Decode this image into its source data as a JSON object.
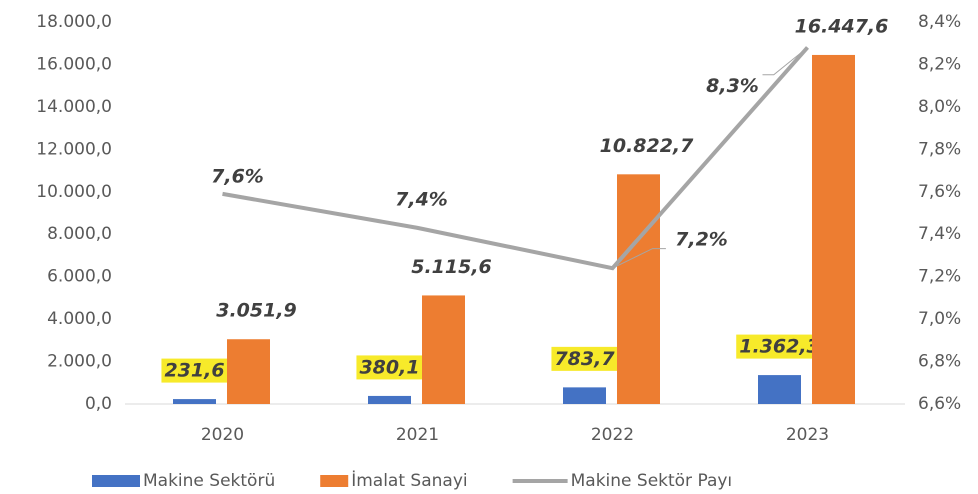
{
  "chart_data": {
    "type": "bar",
    "categories": [
      "2020",
      "2021",
      "2022",
      "2023"
    ],
    "series": [
      {
        "name": "Makine Sektörü",
        "type": "bar",
        "color": "#4472c4",
        "values": [
          231.6,
          380.1,
          783.7,
          1362.3
        ],
        "value_labels": [
          "231,6",
          "380,1",
          "783,7",
          "1.362,3"
        ],
        "label_background": "#f7ea2a"
      },
      {
        "name": "İmalat Sanayi",
        "type": "bar",
        "color": "#ed7d31",
        "values": [
          3051.9,
          5115.6,
          10822.7,
          16447.6
        ],
        "value_labels": [
          "3.051,9",
          "5.115,6",
          "10.822,7",
          "16.447,6"
        ]
      },
      {
        "name": "Makine Sektör Payı",
        "type": "line",
        "axis": "y2",
        "color": "#a5a5a5",
        "values": [
          7.59,
          7.43,
          7.24,
          8.28
        ],
        "value_labels": [
          "7,6%",
          "7,4%",
          "7,2%",
          "8,3%"
        ]
      }
    ],
    "ylim": [
      0,
      18000
    ],
    "yticks": [
      {
        "value": 0,
        "label": "0,0"
      },
      {
        "value": 2000,
        "label": "2.000,0"
      },
      {
        "value": 4000,
        "label": "4.000,0"
      },
      {
        "value": 6000,
        "label": "6.000,0"
      },
      {
        "value": 8000,
        "label": "8.000,0"
      },
      {
        "value": 10000,
        "label": "10.000,0"
      },
      {
        "value": 12000,
        "label": "12.000,0"
      },
      {
        "value": 14000,
        "label": "14.000,0"
      },
      {
        "value": 16000,
        "label": "16.000,0"
      },
      {
        "value": 18000,
        "label": "18.000,0"
      }
    ],
    "y2lim": [
      6.6,
      8.4
    ],
    "y2ticks": [
      {
        "value": 6.6,
        "label": "6,6%"
      },
      {
        "value": 6.8,
        "label": "6,8%"
      },
      {
        "value": 7.0,
        "label": "7,0%"
      },
      {
        "value": 7.2,
        "label": "7,2%"
      },
      {
        "value": 7.4,
        "label": "7,4%"
      },
      {
        "value": 7.6,
        "label": "7,6%"
      },
      {
        "value": 7.8,
        "label": "7,8%"
      },
      {
        "value": 8.0,
        "label": "8,0%"
      },
      {
        "value": 8.2,
        "label": "8,2%"
      },
      {
        "value": 8.4,
        "label": "8,4%"
      }
    ],
    "grid": false,
    "legend": "bottom"
  }
}
